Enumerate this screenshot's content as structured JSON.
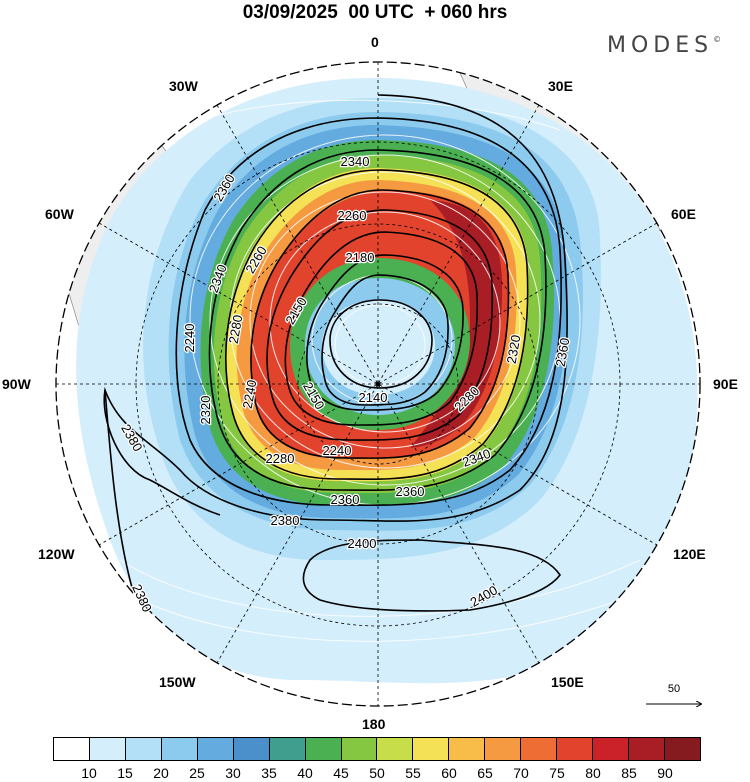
{
  "title": "03/09/2025  00 UTC  + 060 hrs",
  "brand": {
    "name": "MODES",
    "mark": "©"
  },
  "map": {
    "projection": "south polar stereographic",
    "longitude_labels": [
      {
        "id": "0",
        "text": "0"
      },
      {
        "id": "30E",
        "text": "30E"
      },
      {
        "id": "60E",
        "text": "60E"
      },
      {
        "id": "90E",
        "text": "90E"
      },
      {
        "id": "120E",
        "text": "120E"
      },
      {
        "id": "150E",
        "text": "150E"
      },
      {
        "id": "180",
        "text": "180"
      },
      {
        "id": "150W",
        "text": "150W"
      },
      {
        "id": "120W",
        "text": "120W"
      },
      {
        "id": "90W",
        "text": "90W"
      },
      {
        "id": "60W",
        "text": "60W"
      },
      {
        "id": "30W",
        "text": "30W"
      }
    ],
    "contour_labels": [
      "2340",
      "2260",
      "2180",
      "2150",
      "2150",
      "2360",
      "2340",
      "2260",
      "2280",
      "2240",
      "2320",
      "2240",
      "2280",
      "2240",
      "2140",
      "2280",
      "2340",
      "2360",
      "2360",
      "2320",
      "2360",
      "2380",
      "2380",
      "2380",
      "2400",
      "2400",
      "2380"
    ],
    "wind_speed_levels": [
      "10",
      "15",
      "20",
      "25",
      "30",
      "35",
      "40",
      "45",
      "50",
      "55",
      "60",
      "65",
      "70",
      "75",
      "80",
      "85",
      "90"
    ],
    "colorbar_colors": [
      "#ffffff",
      "#d4eefb",
      "#b3e0f7",
      "#8ccaee",
      "#64acdf",
      "#4c90cb",
      "#409e8e",
      "#4bb052",
      "#86c742",
      "#c7dd4a",
      "#f4e155",
      "#f8bc48",
      "#f59a40",
      "#ee6d35",
      "#e2432d",
      "#cb2128",
      "#a81e24",
      "#851a1f"
    ],
    "vector_reference": "50"
  }
}
